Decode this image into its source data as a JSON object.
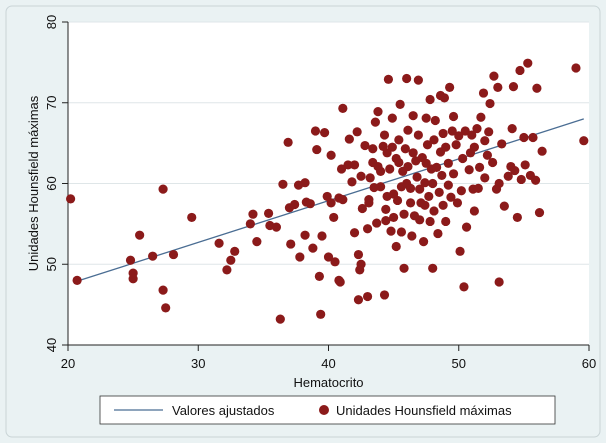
{
  "chart_data": {
    "type": "scatter",
    "xlabel": "Hematocrito",
    "ylabel": "Unidades Hounsfield máximas",
    "xlim": [
      20,
      60
    ],
    "ylim": [
      40,
      80
    ],
    "xticks": [
      "20",
      "30",
      "40",
      "50",
      "60"
    ],
    "yticks": [
      "40",
      "50",
      "60",
      "70",
      "80"
    ],
    "grid": true,
    "legend_position": "bottom",
    "colors": {
      "points": "#8b1a1a",
      "fit_line": "#4a6d93",
      "plot_bg": "#ffffff",
      "page_bg": "#eaf2f3"
    },
    "fit_line": {
      "name": "Valores ajustados",
      "x": [
        20.5,
        59.6
      ],
      "y": [
        47.8,
        68.0
      ]
    },
    "series": [
      {
        "name": "Unidades Hounsfield máximas",
        "points": [
          [
            20.2,
            58.1
          ],
          [
            20.7,
            48.0
          ],
          [
            24.8,
            50.5
          ],
          [
            25.0,
            48.9
          ],
          [
            25.0,
            48.2
          ],
          [
            25.5,
            53.6
          ],
          [
            26.5,
            51.0
          ],
          [
            27.3,
            59.3
          ],
          [
            27.3,
            46.8
          ],
          [
            27.5,
            44.6
          ],
          [
            28.1,
            51.2
          ],
          [
            29.5,
            55.8
          ],
          [
            31.6,
            52.6
          ],
          [
            32.2,
            49.3
          ],
          [
            32.5,
            50.5
          ],
          [
            32.8,
            51.6
          ],
          [
            34.0,
            55.0
          ],
          [
            34.5,
            52.8
          ],
          [
            34.2,
            56.2
          ],
          [
            35.4,
            56.3
          ],
          [
            35.5,
            54.8
          ],
          [
            36.0,
            54.6
          ],
          [
            36.3,
            43.2
          ],
          [
            36.5,
            59.9
          ],
          [
            36.9,
            65.1
          ],
          [
            37.0,
            57.0
          ],
          [
            37.1,
            52.5
          ],
          [
            37.4,
            57.4
          ],
          [
            37.7,
            59.8
          ],
          [
            37.8,
            50.9
          ],
          [
            38.2,
            53.6
          ],
          [
            38.2,
            60.1
          ],
          [
            38.3,
            57.7
          ],
          [
            38.6,
            57.5
          ],
          [
            38.8,
            52.0
          ],
          [
            39.0,
            66.5
          ],
          [
            39.1,
            64.2
          ],
          [
            39.3,
            48.5
          ],
          [
            39.4,
            43.8
          ],
          [
            39.5,
            53.5
          ],
          [
            39.7,
            66.3
          ],
          [
            39.9,
            58.4
          ],
          [
            40.0,
            50.9
          ],
          [
            40.2,
            57.6
          ],
          [
            40.2,
            63.5
          ],
          [
            40.4,
            55.8
          ],
          [
            40.5,
            50.3
          ],
          [
            40.8,
            58.2
          ],
          [
            40.8,
            48.0
          ],
          [
            40.9,
            47.8
          ],
          [
            41.0,
            61.8
          ],
          [
            41.1,
            58.0
          ],
          [
            41.1,
            69.3
          ],
          [
            41.5,
            62.3
          ],
          [
            41.6,
            65.5
          ],
          [
            41.8,
            60.2
          ],
          [
            42.0,
            53.9
          ],
          [
            42.0,
            62.3
          ],
          [
            42.2,
            66.4
          ],
          [
            42.3,
            51.2
          ],
          [
            42.3,
            45.6
          ],
          [
            42.4,
            49.3
          ],
          [
            42.5,
            50.0
          ],
          [
            42.5,
            60.9
          ],
          [
            42.6,
            56.9
          ],
          [
            42.8,
            64.7
          ],
          [
            43.0,
            46.0
          ],
          [
            43.0,
            54.4
          ],
          [
            43.1,
            57.6
          ],
          [
            43.1,
            58.0
          ],
          [
            43.2,
            60.7
          ],
          [
            43.4,
            62.6
          ],
          [
            43.4,
            64.3
          ],
          [
            43.5,
            59.5
          ],
          [
            43.6,
            67.6
          ],
          [
            43.7,
            55.1
          ],
          [
            43.8,
            62.1
          ],
          [
            43.8,
            68.9
          ],
          [
            44.0,
            59.6
          ],
          [
            44.0,
            61.5
          ],
          [
            44.2,
            64.6
          ],
          [
            44.3,
            66.0
          ],
          [
            44.3,
            46.2
          ],
          [
            44.4,
            55.4
          ],
          [
            44.4,
            56.8
          ],
          [
            44.5,
            58.4
          ],
          [
            44.5,
            63.8
          ],
          [
            44.6,
            72.9
          ],
          [
            44.7,
            61.8
          ],
          [
            44.8,
            54.1
          ],
          [
            44.9,
            64.5
          ],
          [
            44.9,
            68.1
          ],
          [
            45.0,
            55.8
          ],
          [
            45.0,
            58.7
          ],
          [
            45.2,
            63.1
          ],
          [
            45.2,
            52.2
          ],
          [
            45.3,
            57.9
          ],
          [
            45.4,
            62.6
          ],
          [
            45.4,
            65.4
          ],
          [
            45.5,
            69.8
          ],
          [
            45.6,
            59.6
          ],
          [
            45.6,
            54.0
          ],
          [
            45.7,
            61.5
          ],
          [
            45.8,
            49.5
          ],
          [
            45.8,
            56.2
          ],
          [
            45.9,
            64.3
          ],
          [
            46.0,
            60.0
          ],
          [
            46.0,
            73.0
          ],
          [
            46.1,
            62.1
          ],
          [
            46.1,
            66.6
          ],
          [
            46.3,
            59.4
          ],
          [
            46.3,
            57.6
          ],
          [
            46.4,
            53.5
          ],
          [
            46.5,
            68.4
          ],
          [
            46.5,
            63.8
          ],
          [
            46.6,
            56.0
          ],
          [
            46.7,
            62.8
          ],
          [
            46.8,
            60.8
          ],
          [
            46.9,
            72.8
          ],
          [
            46.9,
            66.0
          ],
          [
            47.0,
            59.3
          ],
          [
            47.0,
            55.5
          ],
          [
            47.1,
            57.6
          ],
          [
            47.2,
            63.2
          ],
          [
            47.3,
            52.8
          ],
          [
            47.4,
            60.1
          ],
          [
            47.4,
            57.3
          ],
          [
            47.5,
            68.1
          ],
          [
            47.5,
            62.5
          ],
          [
            47.6,
            64.8
          ],
          [
            47.7,
            58.4
          ],
          [
            47.8,
            70.4
          ],
          [
            47.8,
            55.3
          ],
          [
            47.9,
            61.8
          ],
          [
            48.0,
            60.0
          ],
          [
            48.0,
            49.5
          ],
          [
            48.1,
            65.4
          ],
          [
            48.1,
            56.6
          ],
          [
            48.2,
            67.8
          ],
          [
            48.3,
            62.0
          ],
          [
            48.4,
            53.8
          ],
          [
            48.5,
            58.9
          ],
          [
            48.6,
            70.9
          ],
          [
            48.6,
            63.9
          ],
          [
            48.7,
            61.0
          ],
          [
            48.8,
            57.3
          ],
          [
            48.8,
            66.2
          ],
          [
            48.9,
            70.6
          ],
          [
            49.0,
            55.3
          ],
          [
            49.0,
            64.5
          ],
          [
            49.2,
            59.8
          ],
          [
            49.2,
            62.5
          ],
          [
            49.3,
            71.9
          ],
          [
            49.4,
            58.3
          ],
          [
            49.5,
            66.5
          ],
          [
            49.6,
            61.2
          ],
          [
            49.6,
            68.3
          ],
          [
            49.8,
            64.8
          ],
          [
            49.9,
            57.6
          ],
          [
            50.0,
            65.9
          ],
          [
            50.1,
            51.6
          ],
          [
            50.2,
            59.1
          ],
          [
            50.3,
            63.1
          ],
          [
            50.4,
            47.2
          ],
          [
            50.5,
            66.5
          ],
          [
            50.6,
            54.6
          ],
          [
            50.8,
            61.7
          ],
          [
            50.9,
            63.8
          ],
          [
            51.0,
            66.0
          ],
          [
            51.1,
            59.3
          ],
          [
            51.2,
            64.5
          ],
          [
            51.2,
            56.6
          ],
          [
            51.4,
            66.8
          ],
          [
            51.5,
            59.4
          ],
          [
            51.6,
            62.0
          ],
          [
            51.7,
            68.2
          ],
          [
            51.9,
            71.2
          ],
          [
            52.0,
            65.3
          ],
          [
            52.0,
            60.7
          ],
          [
            52.2,
            63.5
          ],
          [
            52.3,
            66.4
          ],
          [
            52.4,
            69.9
          ],
          [
            52.6,
            62.6
          ],
          [
            52.7,
            73.3
          ],
          [
            52.9,
            59.3
          ],
          [
            53.0,
            71.9
          ],
          [
            53.1,
            47.8
          ],
          [
            53.1,
            60.0
          ],
          [
            53.3,
            64.9
          ],
          [
            53.5,
            57.2
          ],
          [
            53.8,
            60.9
          ],
          [
            54.0,
            62.1
          ],
          [
            54.1,
            66.8
          ],
          [
            54.2,
            72.0
          ],
          [
            54.3,
            61.6
          ],
          [
            54.5,
            55.8
          ],
          [
            54.7,
            74.0
          ],
          [
            54.8,
            60.5
          ],
          [
            55.0,
            65.7
          ],
          [
            55.1,
            62.3
          ],
          [
            55.3,
            74.9
          ],
          [
            55.5,
            61.0
          ],
          [
            55.7,
            65.7
          ],
          [
            55.9,
            60.4
          ],
          [
            56.0,
            71.8
          ],
          [
            56.2,
            56.4
          ],
          [
            56.4,
            64.0
          ],
          [
            59.0,
            74.3
          ],
          [
            59.6,
            65.3
          ]
        ]
      }
    ]
  }
}
